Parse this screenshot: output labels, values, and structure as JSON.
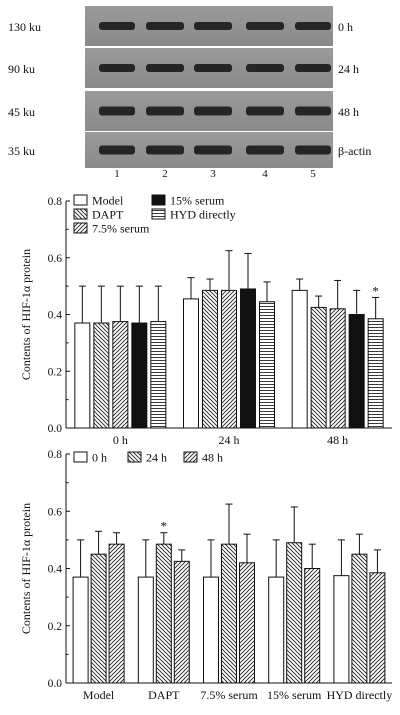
{
  "blot": {
    "lanes": [
      "1",
      "2",
      "3",
      "4",
      "5"
    ],
    "rows": [
      {
        "size": "130 ku",
        "label": "0 h"
      },
      {
        "size": "90 ku",
        "label": "24 h"
      },
      {
        "size": "45 ku",
        "label": "48 h"
      },
      {
        "size": "35 ku",
        "label": "β-actin"
      }
    ]
  },
  "chart_data": [
    {
      "type": "bar",
      "ylabel": "Contents of HIF-1α protein",
      "ylim": [
        0,
        0.8
      ],
      "yticks": [
        "0.0",
        "0.2",
        "0.4",
        "0.6",
        "0.8"
      ],
      "categories": [
        "0 h",
        "24 h",
        "48 h"
      ],
      "series": [
        {
          "name": "Model",
          "pattern": "open",
          "values": [
            0.37,
            0.455,
            0.485
          ],
          "errors": [
            0.13,
            0.075,
            0.04
          ]
        },
        {
          "name": "DAPT",
          "pattern": "back-hatch",
          "values": [
            0.37,
            0.485,
            0.425
          ],
          "errors": [
            0.13,
            0.04,
            0.04
          ]
        },
        {
          "name": "7.5% serum",
          "pattern": "forward-hatch",
          "values": [
            0.375,
            0.485,
            0.42
          ],
          "errors": [
            0.125,
            0.14,
            0.1
          ]
        },
        {
          "name": "15% serum",
          "pattern": "solid",
          "values": [
            0.37,
            0.49,
            0.4
          ],
          "errors": [
            0.13,
            0.125,
            0.085
          ]
        },
        {
          "name": "HYD directly",
          "pattern": "horizontal",
          "values": [
            0.375,
            0.445,
            0.385
          ],
          "errors": [
            0.125,
            0.07,
            0.075
          ]
        }
      ],
      "annotations": [
        {
          "text": "*",
          "category": "48 h",
          "series": "HYD directly"
        }
      ]
    },
    {
      "type": "bar",
      "ylabel": "Contents of HIF-1α protein",
      "ylim": [
        0,
        0.8
      ],
      "yticks": [
        "0.0",
        "0.2",
        "0.4",
        "0.6",
        "0.8"
      ],
      "categories": [
        "Model",
        "DAPT",
        "7.5% serum",
        "15% serum",
        "HYD directly"
      ],
      "series": [
        {
          "name": "0 h",
          "pattern": "open",
          "values": [
            0.37,
            0.37,
            0.37,
            0.37,
            0.375
          ],
          "errors": [
            0.13,
            0.13,
            0.13,
            0.13,
            0.125
          ]
        },
        {
          "name": "24 h",
          "pattern": "back-hatch",
          "values": [
            0.45,
            0.485,
            0.485,
            0.49,
            0.45
          ],
          "errors": [
            0.08,
            0.04,
            0.14,
            0.125,
            0.07
          ]
        },
        {
          "name": "48 h",
          "pattern": "forward-hatch",
          "values": [
            0.485,
            0.425,
            0.42,
            0.4,
            0.385
          ],
          "errors": [
            0.04,
            0.04,
            0.1,
            0.085,
            0.08
          ]
        }
      ],
      "annotations": [
        {
          "text": "*",
          "category": "DAPT",
          "series": "24 h"
        }
      ]
    }
  ]
}
